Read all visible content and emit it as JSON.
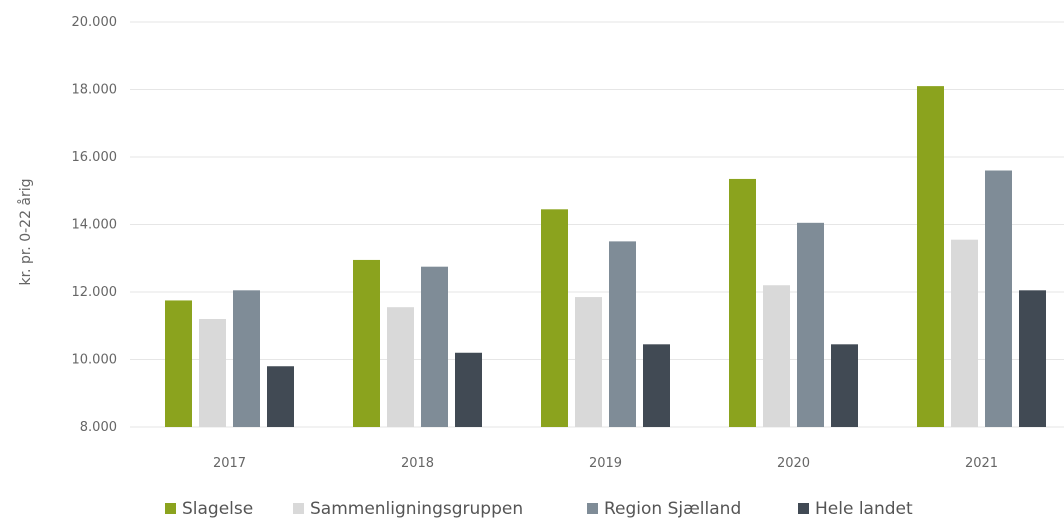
{
  "chart_data": {
    "type": "bar",
    "title": "",
    "xlabel": "",
    "ylabel": "kr. pr. 0-22 årig",
    "ylim": [
      8000,
      20000
    ],
    "yticks": [
      8000,
      10000,
      12000,
      14000,
      16000,
      18000,
      20000
    ],
    "ytick_labels": [
      "8.000",
      "10.000",
      "12.000",
      "14.000",
      "16.000",
      "18.000",
      "20.000"
    ],
    "categories": [
      "2017",
      "2018",
      "2019",
      "2020",
      "2021"
    ],
    "series": [
      {
        "name": "Slagelse",
        "color": "#8BA31E",
        "values": [
          11750,
          12950,
          14450,
          15350,
          18100
        ]
      },
      {
        "name": "Sammenligningsgruppen",
        "color": "#D9D9D9",
        "values": [
          11200,
          11550,
          11850,
          12200,
          13550
        ]
      },
      {
        "name": "Region Sjælland",
        "color": "#7F8C97",
        "values": [
          12050,
          12750,
          13500,
          14050,
          15600
        ]
      },
      {
        "name": "Hele landet",
        "color": "#414A54",
        "values": [
          9800,
          10200,
          10450,
          10450,
          12050
        ]
      }
    ],
    "grid": true,
    "legend_position": "bottom"
  }
}
